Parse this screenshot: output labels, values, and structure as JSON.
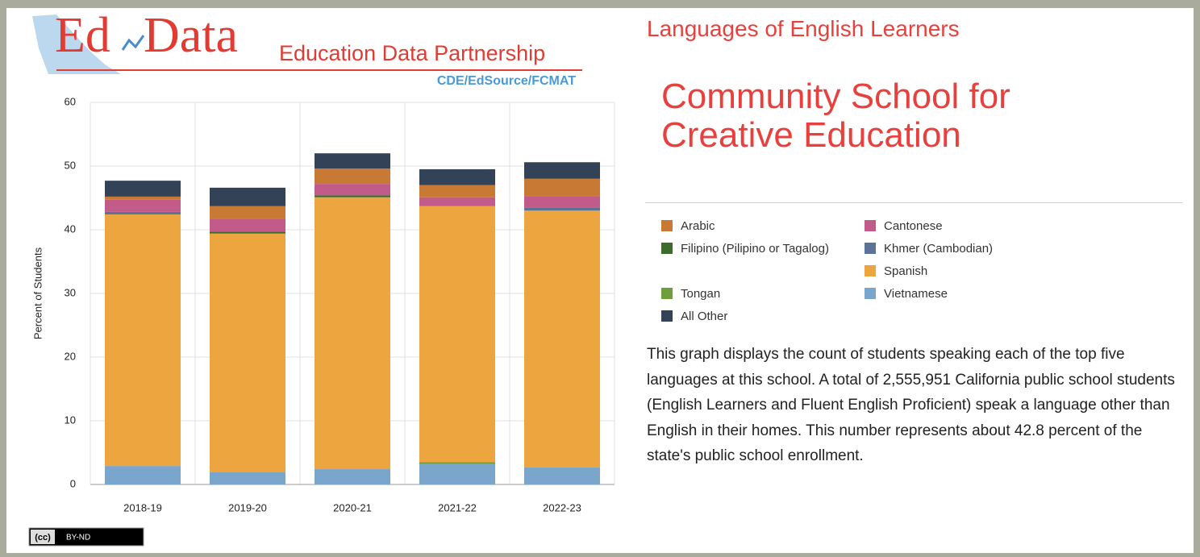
{
  "logo": {
    "mark_left": "Ed",
    "mark_right": "Data",
    "name": "Education Data Partnership",
    "partners": "CDE/EdSource/FCMAT"
  },
  "heading": "Languages of English Learners",
  "school": "Community School for Creative Education",
  "description": "This graph displays the count of students speaking each of the top five languages at this school. A total of 2,555,951 California public school students (English Learners and Fluent English Proficient) speak a language other than English in their homes. This number represents about 42.8 percent of the state's public school enrollment.",
  "license": {
    "cc": "(cc)",
    "terms": "BY-ND"
  },
  "chart_data": {
    "type": "stacked_bar",
    "ylabel": "Percent of Students",
    "categories": [
      "2018-19",
      "2019-20",
      "2020-21",
      "2021-22",
      "2022-23"
    ],
    "series": [
      {
        "name": "Arabic",
        "color": "#c87a35",
        "values": [
          0.5,
          2.0,
          2.4,
          1.9,
          2.7
        ]
      },
      {
        "name": "Cantonese",
        "color": "#c25b8a",
        "values": [
          1.9,
          2.0,
          1.8,
          1.4,
          1.8
        ]
      },
      {
        "name": "Filipino (Pilipino or Tagalog)",
        "color": "#3d6b2a",
        "values": [
          0,
          0.3,
          0.3,
          0,
          0
        ]
      },
      {
        "name": "Khmer (Cambodian)",
        "color": "#5a7397",
        "values": [
          0.4,
          0,
          0,
          0,
          0.5
        ]
      },
      {
        "name": "Spanish",
        "color": "#eda540",
        "values": [
          39.5,
          37.5,
          42.7,
          40.2,
          40.3
        ]
      },
      {
        "name": "Tongan",
        "color": "#6e9e3e",
        "values": [
          0,
          0,
          0,
          0.3,
          0
        ]
      },
      {
        "name": "Vietnamese",
        "color": "#7ba6cb",
        "values": [
          2.9,
          1.9,
          2.4,
          3.2,
          2.7
        ]
      },
      {
        "name": "All Other",
        "color": "#344257",
        "values": [
          2.5,
          2.9,
          2.4,
          2.5,
          2.6
        ]
      }
    ],
    "ylim": [
      0,
      60
    ],
    "yticks": [
      0,
      10,
      20,
      30,
      40,
      50,
      60
    ],
    "grid": true
  }
}
